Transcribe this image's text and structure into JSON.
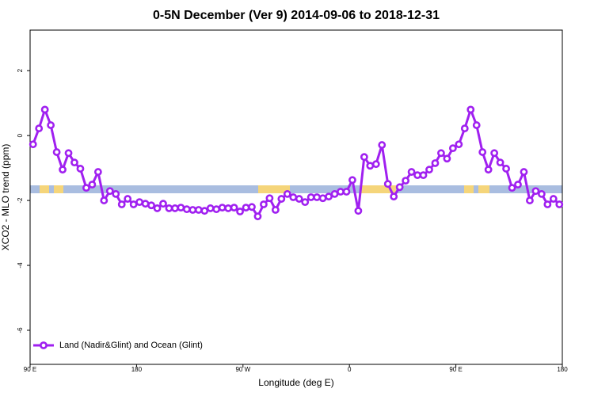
{
  "chart_data": {
    "type": "line",
    "title": "0-5N December (Ver 9)   2014-09-06 to 2018-12-31",
    "x_label": "Longitude (deg E)",
    "y_label": "XCO2 - MLO trend (ppm)",
    "x": [
      92.5,
      97.5,
      102.5,
      107.5,
      112.5,
      117.5,
      122.5,
      127.5,
      132.5,
      137.5,
      142.5,
      147.5,
      152.5,
      157.5,
      162.5,
      167.5,
      172.5,
      177.5,
      182.5,
      187.5,
      192.5,
      197.5,
      202.5,
      207.5,
      212.5,
      217.5,
      222.5,
      227.5,
      232.5,
      237.5,
      242.5,
      247.5,
      252.5,
      257.5,
      262.5,
      267.5,
      272.5,
      277.5,
      282.5,
      287.5,
      292.5,
      297.5,
      302.5,
      307.5,
      312.5,
      317.5,
      322.5,
      327.5,
      332.5,
      337.5,
      342.5,
      347.5,
      352.5,
      357.5,
      362.5,
      367.5,
      372.5,
      377.5,
      382.5,
      387.5,
      392.5,
      397.5,
      402.5,
      407.5,
      412.5,
      417.5,
      422.5,
      427.5,
      432.5,
      437.5,
      442.5,
      447.5,
      452.5,
      457.5,
      462.5,
      467.5,
      472.5,
      477.5,
      482.5,
      487.5,
      492.5,
      497.5,
      502.5,
      507.5,
      512.5,
      517.5,
      522.5,
      527.5,
      532.5,
      537.5
    ],
    "series": [
      {
        "name": "Land (Nadir&Glint) and Ocean (Glint)",
        "color": "#a020f0",
        "values": [
          -0.27,
          0.22,
          0.8,
          0.32,
          -0.51,
          -1.05,
          -0.54,
          -0.83,
          -1.02,
          -1.61,
          -1.51,
          -1.12,
          -2.0,
          -1.71,
          -1.8,
          -2.12,
          -1.95,
          -2.12,
          -2.05,
          -2.1,
          -2.15,
          -2.24,
          -2.1,
          -2.24,
          -2.24,
          -2.22,
          -2.27,
          -2.29,
          -2.29,
          -2.32,
          -2.24,
          -2.27,
          -2.22,
          -2.24,
          -2.22,
          -2.34,
          -2.22,
          -2.2,
          -2.49,
          -2.12,
          -1.93,
          -2.29,
          -1.95,
          -1.8,
          -1.9,
          -1.95,
          -2.05,
          -1.9,
          -1.9,
          -1.93,
          -1.88,
          -1.8,
          -1.73,
          -1.73,
          -1.37,
          -2.32,
          -0.66,
          -0.93,
          -0.88,
          -0.29,
          -1.49,
          -1.88,
          -1.59,
          -1.39,
          -1.12,
          -1.22,
          -1.22,
          -1.05,
          -0.85,
          -0.54,
          -0.71,
          -0.39,
          -0.27,
          0.22,
          0.8,
          0.32,
          -0.51,
          -1.05,
          -0.54,
          -0.83,
          -1.02,
          -1.61,
          -1.51,
          -1.12,
          -2.0,
          -1.71,
          -1.8,
          -2.12,
          -1.95,
          -2.12
        ]
      }
    ],
    "xlim": [
      90,
      540
    ],
    "xticks": [
      {
        "value": 90,
        "label": "90 E"
      },
      {
        "value": 180,
        "label": "180"
      },
      {
        "value": 270,
        "label": "90 W"
      },
      {
        "value": 360,
        "label": "0"
      },
      {
        "value": 450,
        "label": "90 E"
      },
      {
        "value": 540,
        "label": "180"
      }
    ],
    "ylim": [
      -7.05,
      3.25
    ],
    "yticks": [
      2,
      0,
      -2,
      -4,
      -6
    ],
    "legend": "bottom-left"
  }
}
